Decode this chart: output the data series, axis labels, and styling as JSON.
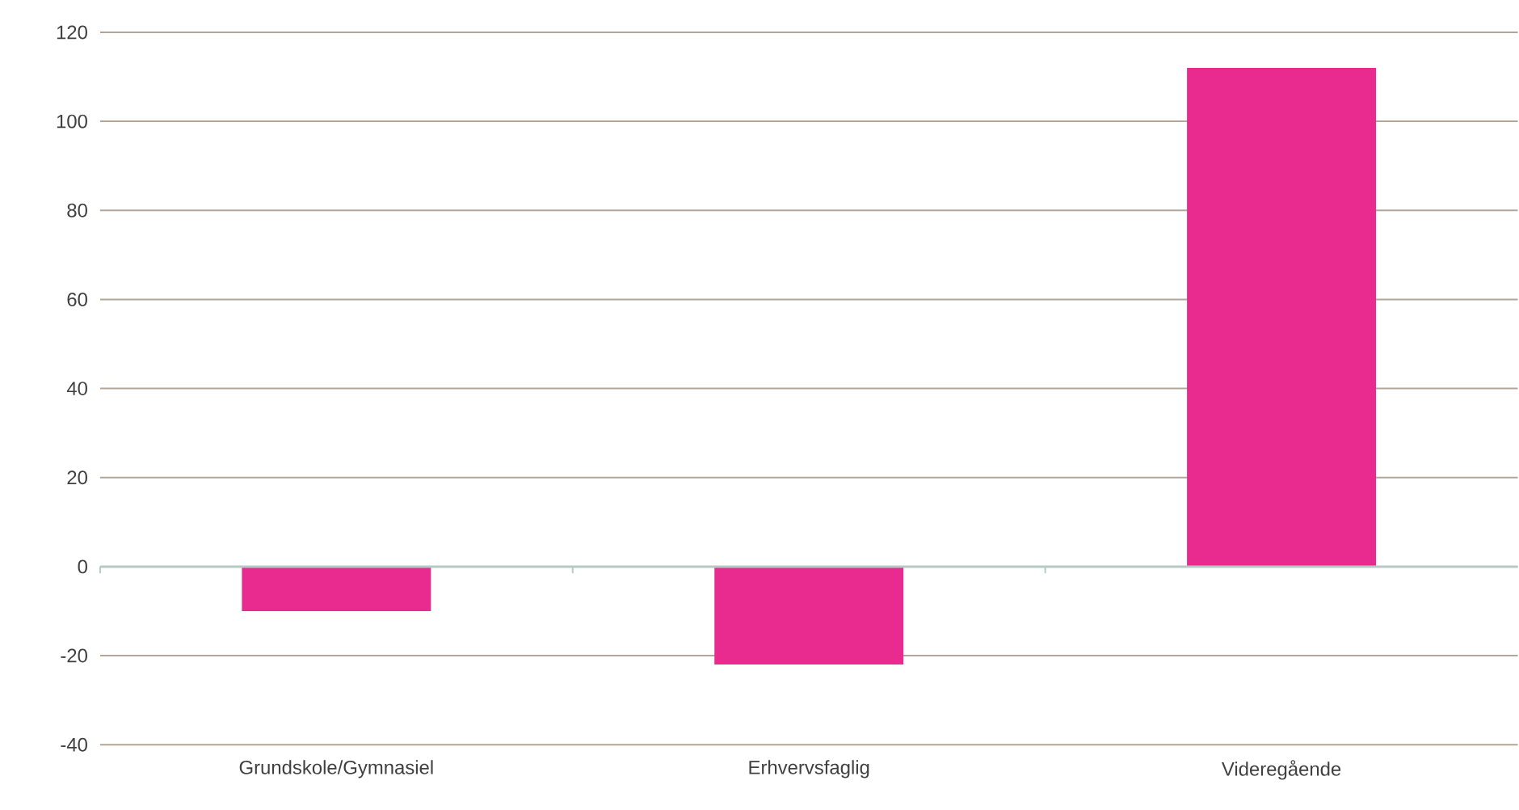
{
  "chart_data": {
    "type": "bar",
    "categories": [
      "Grundskole/Gymnasiel",
      "Erhvervsfaglig",
      "Videregående"
    ],
    "values": [
      -10,
      -22,
      112
    ],
    "color": "#e92a8e",
    "ylim": [
      -40,
      120
    ],
    "yticks": [
      -40,
      -20,
      0,
      20,
      40,
      60,
      80,
      100,
      120
    ],
    "grid": "y"
  }
}
